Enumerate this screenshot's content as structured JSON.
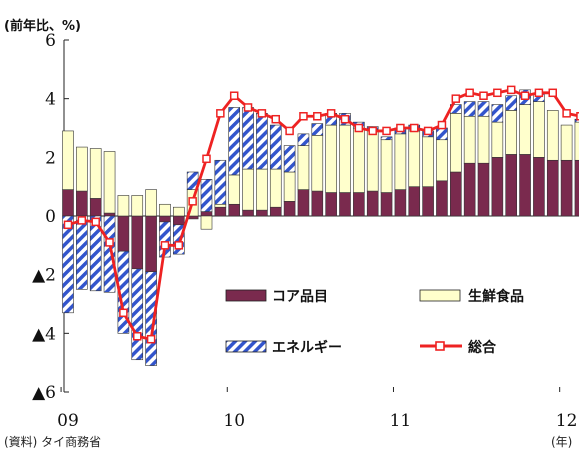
{
  "chart_data": {
    "type": "bar",
    "stacked": true,
    "unit_label": "(前年比、%)",
    "source": "(資料) タイ商務省",
    "x_unit": "(年)",
    "ylim": [
      -6,
      6
    ],
    "yticks": [
      {
        "value": 6,
        "label": "6"
      },
      {
        "value": 4,
        "label": "4"
      },
      {
        "value": 2,
        "label": "2"
      },
      {
        "value": 0,
        "label": "0"
      },
      {
        "value": -2,
        "label": "▲2"
      },
      {
        "value": -4,
        "label": "▲4"
      },
      {
        "value": -6,
        "label": "▲6"
      }
    ],
    "xticks": [
      {
        "index": 0,
        "label": "09"
      },
      {
        "index": 12,
        "label": "10"
      },
      {
        "index": 24,
        "label": "11"
      },
      {
        "index": 36,
        "label": "12"
      }
    ],
    "categories": [
      "2009-01",
      "2009-02",
      "2009-03",
      "2009-04",
      "2009-05",
      "2009-06",
      "2009-07",
      "2009-08",
      "2009-09",
      "2009-10",
      "2009-11",
      "2009-12",
      "2010-01",
      "2010-02",
      "2010-03",
      "2010-04",
      "2010-05",
      "2010-06",
      "2010-07",
      "2010-08",
      "2010-09",
      "2010-10",
      "2010-11",
      "2010-12",
      "2011-01",
      "2011-02",
      "2011-03",
      "2011-04",
      "2011-05",
      "2011-06",
      "2011-07",
      "2011-08",
      "2011-09",
      "2011-10",
      "2011-11",
      "2011-12",
      "2012-01",
      "2012-02"
    ],
    "series": [
      {
        "name": "コア品目",
        "color": "#7a2a4e",
        "values": [
          0.9,
          0.85,
          0.6,
          0.1,
          -1.2,
          -1.8,
          -1.9,
          -0.2,
          -0.3,
          -0.1,
          0.15,
          0.3,
          0.4,
          0.2,
          0.2,
          0.3,
          0.5,
          0.9,
          0.85,
          0.8,
          0.8,
          0.8,
          0.85,
          0.8,
          0.9,
          1.0,
          1.0,
          1.2,
          1.5,
          1.8,
          1.8,
          2.0,
          2.1,
          2.1,
          2.0,
          1.9,
          1.9,
          1.9
        ]
      },
      {
        "name": "生鮮食品",
        "color": "#ffffcc",
        "values": [
          2.0,
          1.5,
          1.7,
          2.1,
          0.7,
          0.7,
          0.9,
          0.4,
          0.3,
          0.9,
          -0.45,
          0.1,
          1.0,
          1.4,
          1.4,
          1.3,
          1.0,
          1.5,
          1.9,
          2.3,
          2.3,
          2.2,
          2.1,
          1.8,
          1.9,
          1.9,
          1.7,
          1.4,
          2.0,
          1.6,
          1.6,
          1.2,
          1.5,
          1.7,
          1.9,
          1.7,
          1.2,
          1.3
        ]
      },
      {
        "name": "エネルギー",
        "color": "#3355cc",
        "values": [
          -3.3,
          -2.5,
          -2.55,
          -2.6,
          -2.8,
          -3.1,
          -3.2,
          -1.2,
          -1.0,
          0.6,
          1.1,
          1.5,
          2.3,
          2.1,
          1.9,
          1.5,
          0.9,
          0.4,
          0.4,
          0.4,
          0.4,
          0.2,
          0.1,
          0.1,
          0.2,
          0.2,
          0.2,
          0.4,
          0.3,
          0.5,
          0.5,
          0.6,
          0.5,
          0.5,
          0.3,
          0.0,
          0.0,
          0.1
        ]
      }
    ],
    "line": {
      "name": "総合",
      "color": "#ee2222",
      "values": [
        -0.3,
        -0.15,
        -0.2,
        -0.9,
        -3.3,
        -4.1,
        -4.2,
        -1.0,
        -1.0,
        0.5,
        1.95,
        3.5,
        4.1,
        3.7,
        3.5,
        3.3,
        2.9,
        3.4,
        3.4,
        3.5,
        3.3,
        3.0,
        2.9,
        2.9,
        3.0,
        3.0,
        2.9,
        3.1,
        4.0,
        4.2,
        4.1,
        4.2,
        4.3,
        4.1,
        4.2,
        4.2,
        3.5,
        3.4
      ]
    },
    "legend": {
      "placement": "inside-bottom-right",
      "items": [
        {
          "label": "コア品目",
          "kind": "bar-core"
        },
        {
          "label": "生鮮食品",
          "kind": "bar-fresh"
        },
        {
          "label": "エネルギー",
          "kind": "bar-energy"
        },
        {
          "label": "総合",
          "kind": "line"
        }
      ]
    }
  }
}
